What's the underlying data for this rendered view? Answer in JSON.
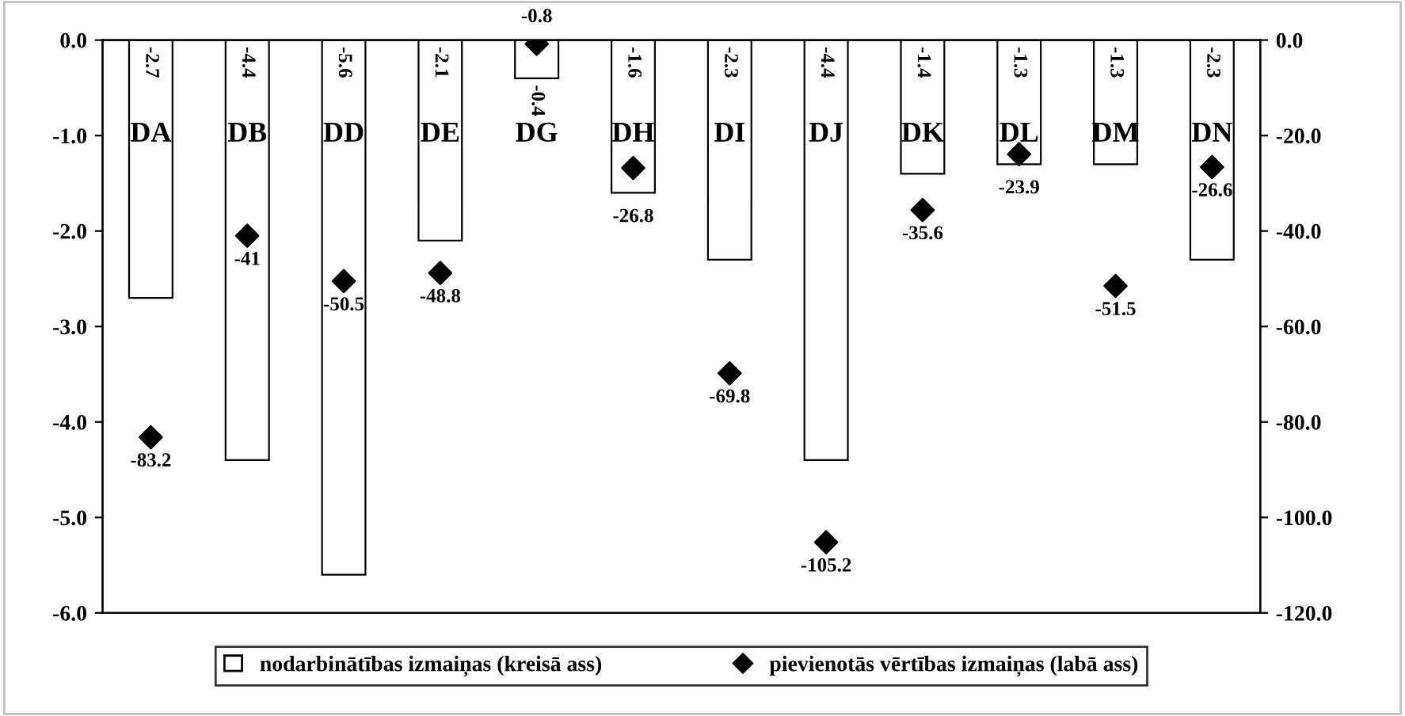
{
  "chart_data": {
    "type": "bar",
    "categories": [
      "DA",
      "DB",
      "DD",
      "DE",
      "DG",
      "DH",
      "DI",
      "DJ",
      "DK",
      "DL",
      "DM",
      "DN"
    ],
    "series": [
      {
        "name": "nodarbinātības izmaiņas (kreisā ass)",
        "type": "bar",
        "color": "#ffffff",
        "values": [
          -2.7,
          -4.4,
          -5.6,
          -2.1,
          -0.4,
          -1.6,
          -2.3,
          -4.4,
          -1.4,
          -1.3,
          -1.3,
          -2.3
        ]
      },
      {
        "name": "pievienotās vērtības izmaiņas (labā ass)",
        "type": "scatter",
        "axis": "y2",
        "color": "#000000",
        "marker": "diamond",
        "values": [
          -83.2,
          -41,
          -50.5,
          -48.8,
          -0.8,
          -26.8,
          -69.8,
          -105.2,
          -35.6,
          -23.9,
          -51.5,
          -26.6
        ]
      }
    ],
    "ylim": [
      -6,
      0
    ],
    "yticks": [
      {
        "value": 0,
        "label": "0.0"
      },
      {
        "value": -1,
        "label": "-1.0"
      },
      {
        "value": -2,
        "label": "-2.0"
      },
      {
        "value": -3,
        "label": "-3.0"
      },
      {
        "value": -4,
        "label": "-4.0"
      },
      {
        "value": -5,
        "label": "-5.0"
      },
      {
        "value": -6,
        "label": "-6.0"
      }
    ],
    "y2lim": [
      -120,
      0
    ],
    "y2ticks": [
      {
        "value": 0,
        "label": "0.0"
      },
      {
        "value": -20,
        "label": "-20.0"
      },
      {
        "value": -40,
        "label": "-40.0"
      },
      {
        "value": -60,
        "label": "-60.0"
      },
      {
        "value": -80,
        "label": "-80.0"
      },
      {
        "value": -100,
        "label": "-100.0"
      },
      {
        "value": -120,
        "label": "-120.0"
      }
    ],
    "data_labels": true,
    "grid": false,
    "legend": "bottom"
  }
}
